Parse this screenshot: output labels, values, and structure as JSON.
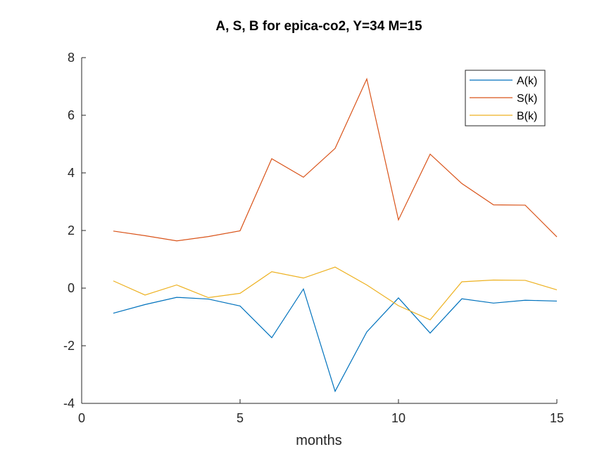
{
  "chart_data": {
    "type": "line",
    "title": "A, S, B for epica-co2, Y=34 M=15",
    "xlabel": "months",
    "ylabel": "",
    "xlim": [
      0,
      15
    ],
    "ylim": [
      -4,
      8
    ],
    "xticks": [
      0,
      5,
      10,
      15
    ],
    "yticks": [
      -4,
      -2,
      0,
      2,
      4,
      6,
      8
    ],
    "x": [
      1,
      2,
      3,
      4,
      5,
      6,
      7,
      8,
      9,
      10,
      11,
      12,
      13,
      14,
      15
    ],
    "series": [
      {
        "name": "A(k)",
        "color": "#0072BD",
        "values": [
          -0.87,
          -0.57,
          -0.32,
          -0.38,
          -0.62,
          -1.72,
          -0.03,
          -3.58,
          -1.52,
          -0.34,
          -1.56,
          -0.37,
          -0.52,
          -0.42,
          -0.45
        ]
      },
      {
        "name": "S(k)",
        "color": "#D95319",
        "values": [
          1.98,
          1.82,
          1.64,
          1.79,
          1.99,
          4.49,
          3.85,
          4.85,
          7.26,
          2.37,
          4.65,
          3.63,
          2.89,
          2.88,
          1.78
        ]
      },
      {
        "name": "B(k)",
        "color": "#EDB120",
        "values": [
          0.25,
          -0.24,
          0.11,
          -0.33,
          -0.18,
          0.57,
          0.35,
          0.73,
          0.11,
          -0.61,
          -1.1,
          0.22,
          0.28,
          0.27,
          -0.06
        ]
      }
    ],
    "grid": false,
    "legend_position": "top-right",
    "box": false
  }
}
